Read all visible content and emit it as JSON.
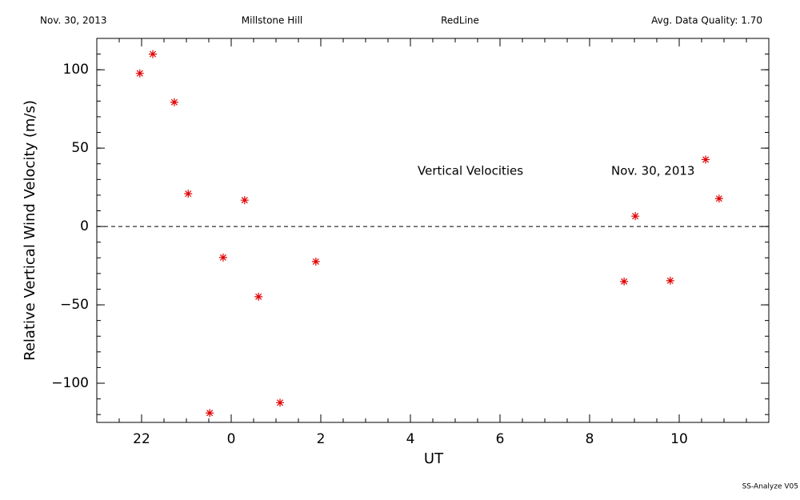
{
  "chart_data": {
    "type": "scatter",
    "header": [
      "Nov. 30, 2013",
      "Millstone Hill",
      "RedLine",
      "Avg. Data Quality: 1.70"
    ],
    "x_label": "UT",
    "y_label": "Relative Vertical Wind Velocity (m/s)",
    "annotations": [
      "Vertical Velocities",
      "Nov. 30, 2013"
    ],
    "footer": "SS-Analyze V05",
    "xlim": [
      -3,
      12
    ],
    "xticks": [
      {
        "value": -2,
        "label": "22"
      },
      0,
      2,
      4,
      6,
      8,
      10
    ],
    "x_minor_step": 0.5,
    "ylim": [
      -125,
      120
    ],
    "yticks": [
      {
        "value": -100,
        "label": "−100"
      },
      {
        "value": -50,
        "label": "−50"
      },
      0,
      50,
      100
    ],
    "y_minor_step": 10,
    "reference_line": 0,
    "color": "#e00000",
    "x": [
      -2.04,
      -1.75,
      -1.27,
      -0.96,
      -0.48,
      -0.18,
      0.3,
      0.61,
      1.09,
      1.89,
      8.77,
      9.02,
      9.8,
      10.59,
      10.89
    ],
    "values": [
      97.7,
      110,
      79.3,
      20.9,
      -119,
      -19.8,
      16.8,
      -44.8,
      -112.4,
      -22.4,
      -35.1,
      6.6,
      -34.6,
      42.7,
      17.8
    ]
  }
}
